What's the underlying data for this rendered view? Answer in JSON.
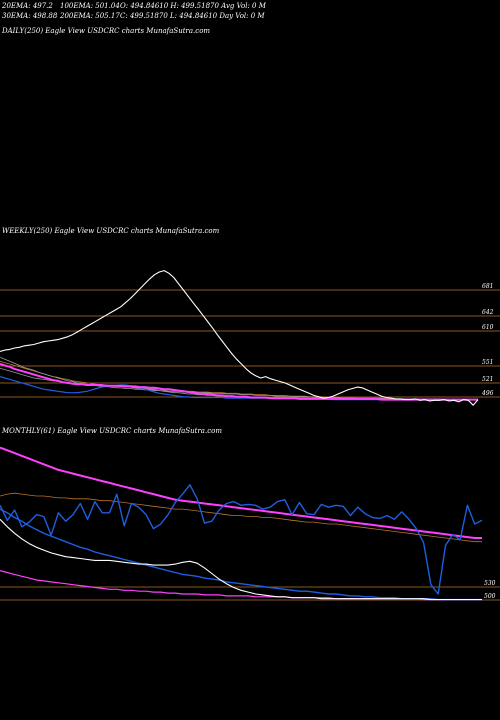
{
  "header": {
    "row1": [
      "20EMA: 497.2",
      "100EMA: 501.04",
      "O: 494.84610 H: 499.51870 Avg Vol: 0  M"
    ],
    "row2": [
      "30EMA: 498.88",
      "200EMA: 505.17",
      "C: 499.51870 L: 494.84610 Day Vol: 0  M"
    ]
  },
  "panels": {
    "daily_label": "DAILY(250) Eagle   View  USDCRC charts MunafaSutra.com",
    "weekly_label": "WEEKLY(250) Eagle   View  USDCRC charts MunafaSutra.com",
    "monthly_label": "MONTHLY(61) Eagle   View  USDCRC charts MunafaSutra.com"
  },
  "colors": {
    "background": "#000000",
    "price": "#ffffff",
    "ema_short": "#1e5fe0",
    "ema_long": "#ff40ff",
    "level_line": "#b8742a",
    "ema_gray": "#9a9a9a"
  },
  "chart_data": [
    {
      "type": "line",
      "panel": "weekly",
      "levels": [
        681,
        642,
        610,
        551,
        521,
        496
      ],
      "level_labels": [
        "681",
        "642",
        "610",
        "551",
        "521",
        "496"
      ],
      "series": [
        {
          "values": [
            566,
            568,
            569,
            571,
            572,
            574,
            575,
            576,
            578,
            580,
            581,
            582,
            583,
            585,
            587,
            590,
            594,
            598,
            602,
            606,
            610,
            614,
            618,
            622,
            626,
            630,
            636,
            642,
            649,
            656,
            663,
            670,
            676,
            680,
            682,
            678,
            672,
            663,
            654,
            645,
            636,
            627,
            618,
            609,
            600,
            590,
            581,
            572,
            563,
            555,
            548,
            541,
            535,
            531,
            528,
            530,
            527,
            525,
            523,
            521,
            518,
            515,
            512,
            509,
            506,
            503,
            501,
            499,
            500,
            502,
            505,
            508,
            511,
            513,
            515,
            514,
            511,
            508,
            505,
            502,
            500,
            499,
            498,
            498,
            497,
            497,
            498,
            496,
            497,
            495,
            496,
            496,
            497,
            495,
            496,
            494,
            497,
            496,
            489,
            497
          ]
        },
        {
          "values": [
            548,
            546,
            544,
            541,
            539,
            537,
            535,
            533,
            531,
            529,
            527,
            525,
            524,
            522,
            521,
            520,
            519,
            519,
            518,
            518,
            518,
            518,
            517,
            517,
            517,
            517,
            516,
            516,
            516,
            515,
            515,
            514,
            514,
            513,
            512,
            512,
            511,
            510,
            509,
            508,
            507,
            506,
            505,
            505,
            504,
            503,
            503,
            502,
            502,
            501,
            501,
            501,
            500,
            500,
            500,
            500,
            499,
            499,
            499,
            499,
            499,
            499,
            498,
            498,
            498,
            498,
            498,
            498,
            498,
            498,
            498,
            498,
            498,
            498,
            498,
            498,
            498,
            498,
            498,
            497,
            497,
            497,
            497,
            497,
            497,
            497,
            497,
            497,
            497,
            497,
            497,
            497,
            497,
            497,
            497,
            497,
            497,
            497,
            497,
            497
          ]
        },
        {
          "values": [
            530,
            528,
            526,
            524,
            522,
            520,
            518,
            516,
            514,
            512,
            511,
            510,
            509,
            508,
            507,
            507,
            507,
            508,
            509,
            511,
            513,
            515,
            516,
            516,
            517,
            518,
            518,
            517,
            516,
            514,
            512,
            510,
            508,
            506,
            505,
            504,
            503,
            502,
            501,
            501,
            500,
            500,
            500,
            500,
            500,
            500,
            500,
            499,
            499,
            499,
            499,
            499,
            499,
            499,
            499,
            499,
            499,
            498,
            498,
            498,
            498,
            498,
            498,
            498,
            498,
            498,
            498,
            498,
            498,
            497,
            497,
            497,
            497,
            497,
            497,
            497,
            497,
            497,
            497,
            497,
            497,
            497,
            497,
            497,
            497,
            497,
            497,
            497,
            497,
            497,
            497,
            497,
            497,
            497,
            497,
            497,
            497,
            497,
            497,
            497
          ]
        },
        {
          "values": [
            542,
            540,
            538,
            536,
            534,
            532,
            530,
            528,
            527,
            526,
            525,
            524,
            523,
            522,
            521,
            520,
            520,
            519,
            519,
            518,
            518,
            517,
            517,
            517,
            516,
            516,
            515,
            515,
            514,
            513,
            513,
            512,
            511,
            510,
            509,
            508,
            507,
            507,
            506,
            505,
            505,
            504,
            504,
            503,
            503,
            502,
            502,
            502,
            501,
            501,
            501,
            500,
            500,
            500,
            500,
            500,
            499,
            499,
            499,
            499,
            499,
            499,
            499,
            499,
            499,
            498,
            498,
            498,
            498,
            498,
            498,
            498,
            498,
            498,
            498,
            498,
            498,
            498,
            498,
            498,
            497,
            497,
            497,
            497,
            497,
            497,
            497,
            497,
            497,
            497,
            497,
            497,
            497,
            497,
            497,
            497,
            497,
            497,
            497,
            497
          ]
        },
        {
          "values": [
            558,
            555,
            552,
            549,
            546,
            543,
            541,
            539,
            536,
            534,
            532,
            530,
            528,
            526,
            524,
            523,
            521,
            520,
            519,
            518,
            517,
            516,
            516,
            515,
            514,
            514,
            513,
            513,
            512,
            512,
            511,
            511,
            510,
            510,
            510,
            509,
            509,
            509,
            508,
            508,
            508,
            507,
            507,
            507,
            506,
            506,
            506,
            505,
            505,
            505,
            504,
            504,
            504,
            503,
            503,
            503,
            503,
            502,
            502,
            502,
            502,
            501,
            501,
            501,
            501,
            500,
            500,
            500,
            500,
            500,
            500,
            499,
            499,
            499,
            499,
            499,
            499,
            499,
            499,
            499,
            498,
            498,
            498,
            498,
            498,
            498,
            498,
            498,
            498,
            498,
            498,
            497,
            497,
            497,
            497,
            497,
            497,
            497,
            497,
            497
          ]
        },
        {
          "values": [
            552,
            550,
            548,
            546,
            544,
            542,
            540,
            538,
            536,
            534,
            532,
            530,
            529,
            527,
            526,
            524,
            523,
            522,
            521,
            520,
            519,
            518,
            518,
            517,
            516,
            516,
            515,
            515,
            514,
            514,
            513,
            513,
            512,
            512,
            511,
            511,
            510,
            510,
            510,
            509,
            509,
            508,
            508,
            508,
            507,
            507,
            507,
            506,
            506,
            506,
            505,
            505,
            505,
            504,
            504,
            504,
            503,
            503,
            503,
            503,
            502,
            502,
            502,
            502,
            501,
            501,
            501,
            501,
            500,
            500,
            500,
            500,
            500,
            500,
            499,
            499,
            499,
            499,
            499,
            499,
            499,
            498,
            498,
            498,
            498,
            498,
            498,
            498,
            498,
            498,
            498,
            498,
            497,
            497,
            497,
            497,
            497,
            497,
            497,
            497
          ]
        }
      ]
    },
    {
      "type": "line",
      "panel": "monthly",
      "levels": [
        530,
        500
      ],
      "level_labels": [
        "530",
        "500"
      ],
      "series": [
        {
          "values": [
            600,
            584,
            595,
            577,
            582,
            590,
            588,
            568,
            592,
            583,
            590,
            602,
            585,
            604,
            592,
            592,
            612,
            578,
            602,
            598,
            590,
            575,
            580,
            590,
            603,
            612,
            622,
            607,
            581,
            583,
            595,
            602,
            604,
            600,
            601,
            600,
            596,
            598,
            604,
            606,
            590,
            603,
            591,
            590,
            601,
            598,
            600,
            599,
            589,
            598,
            591,
            587,
            586,
            589,
            585,
            593,
            585,
            575,
            560,
            515,
            505,
            557,
            569,
            563,
            600,
            580,
            584
          ]
        },
        {
          "values": [
            585,
            577,
            570,
            564,
            559,
            555,
            552,
            549,
            547,
            545,
            544,
            543,
            542,
            541,
            541,
            541,
            540,
            539,
            538,
            537,
            537,
            536,
            536,
            536,
            537,
            539,
            540,
            538,
            533,
            527,
            521,
            516,
            512,
            509,
            507,
            505,
            504,
            503,
            502,
            502,
            501,
            501,
            501,
            501,
            500,
            500,
            500,
            500,
            500,
            500,
            500,
            500,
            500,
            500,
            500,
            500,
            500,
            500,
            500,
            499,
            499,
            499,
            499,
            499,
            499,
            499,
            499
          ]
        },
        {
          "values": [
            610,
            612,
            613,
            612,
            611,
            610,
            610,
            609,
            608,
            608,
            607,
            607,
            607,
            606,
            605,
            605,
            604,
            603,
            602,
            601,
            600,
            599,
            598,
            597,
            596,
            596,
            595,
            594,
            593,
            592,
            591,
            590,
            589,
            589,
            588,
            588,
            587,
            587,
            586,
            585,
            584,
            583,
            582,
            582,
            581,
            580,
            580,
            579,
            578,
            577,
            576,
            575,
            574,
            573,
            572,
            571,
            570,
            569,
            568,
            567,
            566,
            565,
            564,
            563,
            562,
            561,
            561
          ]
        },
        {
          "values": [
            662,
            659,
            656,
            653,
            650,
            647,
            644,
            641,
            638,
            636,
            634,
            632,
            630,
            628,
            626,
            624,
            622,
            620,
            618,
            616,
            614,
            612,
            610,
            608,
            606,
            605,
            604,
            603,
            602,
            601,
            600,
            599,
            598,
            597,
            596,
            595,
            594,
            593,
            592,
            591,
            590,
            589,
            588,
            587,
            586,
            585,
            584,
            583,
            582,
            581,
            580,
            579,
            578,
            577,
            576,
            575,
            574,
            573,
            572,
            571,
            570,
            569,
            568,
            567,
            566,
            565,
            565
          ]
        },
        {
          "values": [
            596,
            592,
            587,
            583,
            578,
            574,
            570,
            567,
            564,
            561,
            558,
            555,
            553,
            550,
            548,
            546,
            544,
            542,
            540,
            538,
            536,
            534,
            532,
            530,
            528,
            526,
            525,
            524,
            522,
            521,
            520,
            518,
            517,
            516,
            515,
            514,
            513,
            512,
            511,
            510,
            509,
            508,
            508,
            507,
            506,
            505,
            505,
            504,
            503,
            503,
            502,
            502,
            501,
            501,
            501,
            500,
            500,
            500,
            500,
            500,
            499,
            499,
            499,
            499,
            499,
            499,
            499
          ]
        },
        {
          "values": [
            530,
            528,
            526,
            524,
            522,
            520,
            519,
            518,
            517,
            516,
            515,
            514,
            513,
            512,
            511,
            510,
            510,
            509,
            509,
            508,
            508,
            507,
            507,
            506,
            506,
            505,
            505,
            505,
            504,
            504,
            504,
            503,
            503,
            503,
            503,
            502,
            502,
            502,
            502,
            502,
            501,
            501,
            501,
            501,
            501,
            501,
            500,
            500,
            500,
            500,
            500,
            500,
            500,
            500,
            500,
            500,
            500,
            500,
            499,
            499,
            499,
            499,
            499,
            499,
            499,
            499,
            499
          ]
        }
      ]
    }
  ]
}
